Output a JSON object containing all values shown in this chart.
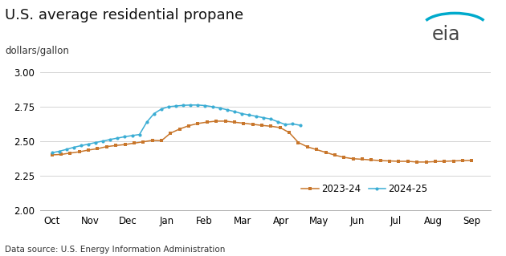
{
  "title": "U.S. average residential propane",
  "ylabel": "dollars/gallon",
  "data_source": "Data source: U.S. Energy Information Administration",
  "ylim": [
    2.0,
    3.06
  ],
  "yticks": [
    2.0,
    2.25,
    2.5,
    2.75,
    3.0
  ],
  "x_labels": [
    "Oct",
    "Nov",
    "Dec",
    "Jan",
    "Feb",
    "Mar",
    "Apr",
    "May",
    "Jun",
    "Jul",
    "Aug",
    "Sep"
  ],
  "series_2023": {
    "label": "2023-24",
    "color": "#C8762B",
    "marker": "s",
    "y": [
      2.4,
      2.403,
      2.413,
      2.422,
      2.435,
      2.445,
      2.46,
      2.468,
      2.475,
      2.485,
      2.495,
      2.505,
      2.503,
      2.558,
      2.588,
      2.612,
      2.628,
      2.638,
      2.645,
      2.645,
      2.637,
      2.63,
      2.622,
      2.614,
      2.608,
      2.598,
      2.562,
      2.49,
      2.458,
      2.438,
      2.418,
      2.398,
      2.382,
      2.372,
      2.368,
      2.363,
      2.358,
      2.356,
      2.353,
      2.353,
      2.348,
      2.348,
      2.351,
      2.353,
      2.356,
      2.358,
      2.36
    ]
  },
  "series_2024": {
    "label": "2024-25",
    "color": "#3BADD4",
    "marker": "o",
    "y": [
      2.415,
      2.426,
      2.44,
      2.455,
      2.467,
      2.478,
      2.49,
      2.5,
      2.512,
      2.522,
      2.532,
      2.54,
      2.548,
      2.638,
      2.7,
      2.733,
      2.75,
      2.755,
      2.76,
      2.762,
      2.762,
      2.758,
      2.75,
      2.74,
      2.728,
      2.715,
      2.7,
      2.69,
      2.68,
      2.67,
      2.66,
      2.64,
      2.62,
      2.625,
      2.615
    ]
  },
  "background_color": "#FFFFFF",
  "grid_color": "#CCCCCC",
  "title_fontsize": 13,
  "ylabel_fontsize": 8.5,
  "tick_fontsize": 8.5,
  "legend_fontsize": 8.5,
  "datasource_fontsize": 7.5
}
